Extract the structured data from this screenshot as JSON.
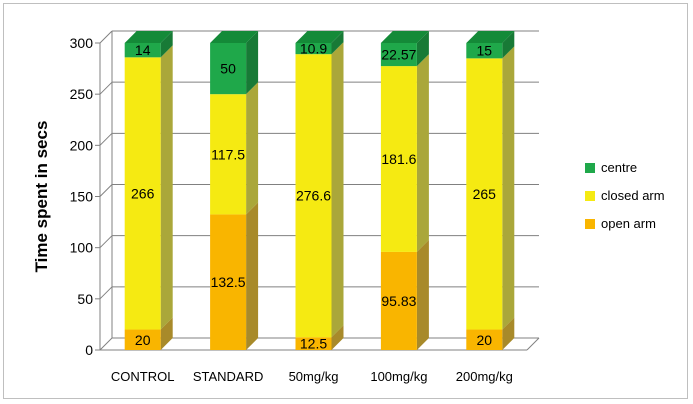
{
  "chart_data": {
    "type": "bar",
    "stacked": true,
    "three_d": true,
    "title": "",
    "xlabel": "",
    "ylabel": "Time spent in secs",
    "ylim": [
      0,
      300
    ],
    "yticks": [
      0,
      50,
      100,
      150,
      200,
      250,
      300
    ],
    "grid": true,
    "legend_position": "right",
    "categories": [
      "CONTROL",
      "STANDARD",
      "50mg/kg",
      "100mg/kg",
      "200mg/kg"
    ],
    "series": [
      {
        "name": "open arm",
        "values": [
          20,
          132.5,
          12.5,
          95.83,
          20
        ],
        "labels": [
          "20",
          "132.5",
          "12.5",
          "95.83",
          "20"
        ],
        "color": "#f9b500",
        "side": "#a88a2a",
        "topc": "#d79a1a"
      },
      {
        "name": "closed arm",
        "values": [
          266,
          117.5,
          276.6,
          181.6,
          265
        ],
        "labels": [
          "266",
          "117.5",
          "276.6",
          "181.6",
          "265"
        ],
        "color": "#f5ea12",
        "side": "#aaa73a",
        "topc": "#d6cf1a"
      },
      {
        "name": "centre",
        "values": [
          14,
          50,
          10.9,
          22.57,
          15
        ],
        "labels": [
          "14",
          "50",
          "10.9",
          "22.57",
          "15"
        ],
        "color": "#1fa84a",
        "side": "#187a36",
        "topc": "#148a38"
      }
    ],
    "legend_order": [
      "centre",
      "closed arm",
      "open arm"
    ]
  }
}
